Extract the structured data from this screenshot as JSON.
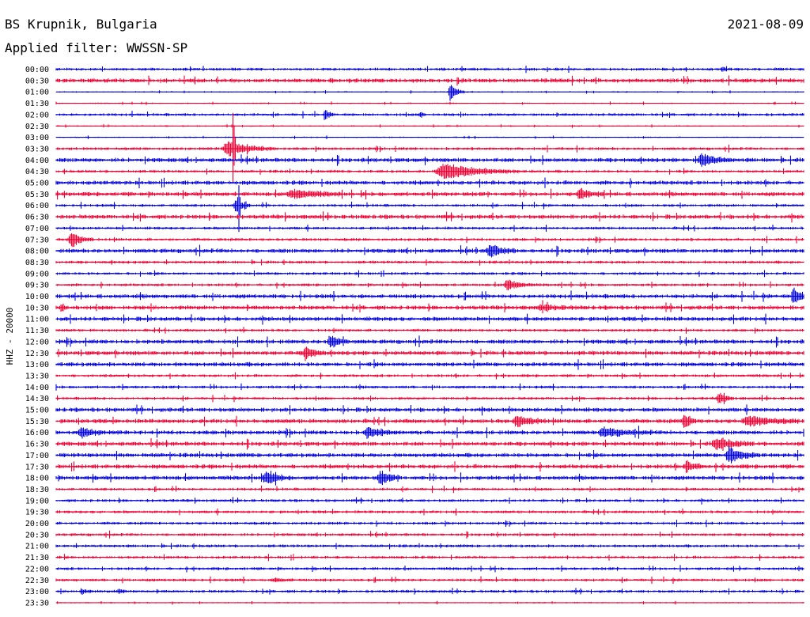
{
  "header": {
    "station": "BS Krupnik, Bulgaria",
    "date": "2021-08-09",
    "filter": "Applied filter: WWSSN-SP"
  },
  "colors": {
    "blue": "#0000dd",
    "red": "#ee0033"
  },
  "chart_data": {
    "type": "line",
    "title": "BS Krupnik, Bulgaria",
    "ylabel": "HHZ - 20000",
    "xlabel": "",
    "grid": false,
    "rows": [
      "00:00",
      "00:30",
      "01:00",
      "01:30",
      "02:00",
      "02:30",
      "03:00",
      "03:30",
      "04:00",
      "04:30",
      "05:00",
      "05:30",
      "06:00",
      "06:30",
      "07:00",
      "07:30",
      "08:00",
      "08:30",
      "09:00",
      "09:30",
      "10:00",
      "10:30",
      "11:00",
      "11:30",
      "12:00",
      "12:30",
      "13:00",
      "13:30",
      "14:00",
      "14:30",
      "15:00",
      "15:30",
      "16:00",
      "16:30",
      "17:00",
      "17:30",
      "18:00",
      "18:30",
      "19:00",
      "19:30",
      "20:00",
      "20:30",
      "21:00",
      "21:30",
      "22:00",
      "22:30",
      "23:00",
      "23:30"
    ],
    "row_colors": [
      "blue",
      "red"
    ],
    "minutes_per_row": 30,
    "noise_level": [
      2,
      3,
      1,
      1,
      2,
      1,
      1,
      2,
      3,
      2,
      3,
      3,
      2,
      3,
      2,
      2,
      3,
      2,
      2,
      2,
      3,
      3,
      3,
      2,
      3,
      3,
      3,
      2,
      2,
      2,
      3,
      3,
      3,
      3,
      3,
      3,
      3,
      2,
      2,
      2,
      2,
      2,
      2,
      2,
      2,
      2,
      2,
      1
    ],
    "events": [
      {
        "row": "00:00",
        "minute": 26.7,
        "amp": 3,
        "dur": 0.3
      },
      {
        "row": "01:00",
        "minute": 15.8,
        "amp": 12,
        "dur": 0.6
      },
      {
        "row": "02:00",
        "minute": 10.8,
        "amp": 6,
        "dur": 0.4
      },
      {
        "row": "02:00",
        "minute": 14.6,
        "amp": 4,
        "dur": 0.3
      },
      {
        "row": "03:30",
        "minute": 6.9,
        "amp": 9,
        "dur": 2.0
      },
      {
        "row": "03:30",
        "minute": 7.1,
        "amp": 90,
        "dur": 0.1
      },
      {
        "row": "04:00",
        "minute": 25.9,
        "amp": 8,
        "dur": 1.2
      },
      {
        "row": "04:30",
        "minute": 15.6,
        "amp": 10,
        "dur": 3.0
      },
      {
        "row": "05:30",
        "minute": 9.5,
        "amp": 5,
        "dur": 2.0
      },
      {
        "row": "05:30",
        "minute": 21.0,
        "amp": 6,
        "dur": 1.0
      },
      {
        "row": "06:00",
        "minute": 7.2,
        "amp": 10,
        "dur": 0.6
      },
      {
        "row": "06:00",
        "minute": 7.3,
        "amp": 60,
        "dur": 0.1
      },
      {
        "row": "07:30",
        "minute": 0.6,
        "amp": 11,
        "dur": 0.9
      },
      {
        "row": "08:00",
        "minute": 17.4,
        "amp": 8,
        "dur": 1.0
      },
      {
        "row": "09:30",
        "minute": 18.1,
        "amp": 7,
        "dur": 1.0
      },
      {
        "row": "10:00",
        "minute": 29.6,
        "amp": 10,
        "dur": 0.8
      },
      {
        "row": "10:30",
        "minute": 0.2,
        "amp": 6,
        "dur": 0.3
      },
      {
        "row": "10:30",
        "minute": 19.5,
        "amp": 3,
        "dur": 1.5
      },
      {
        "row": "12:00",
        "minute": 11.0,
        "amp": 9,
        "dur": 0.8
      },
      {
        "row": "12:30",
        "minute": 10.0,
        "amp": 8,
        "dur": 0.8
      },
      {
        "row": "14:30",
        "minute": 26.6,
        "amp": 8,
        "dur": 0.6
      },
      {
        "row": "15:30",
        "minute": 18.5,
        "amp": 8,
        "dur": 1.2
      },
      {
        "row": "15:30",
        "minute": 25.2,
        "amp": 10,
        "dur": 0.6
      },
      {
        "row": "15:30",
        "minute": 27.8,
        "amp": 6,
        "dur": 2.0
      },
      {
        "row": "16:00",
        "minute": 1.0,
        "amp": 6,
        "dur": 1.0
      },
      {
        "row": "16:00",
        "minute": 12.5,
        "amp": 6,
        "dur": 1.2
      },
      {
        "row": "16:00",
        "minute": 22.0,
        "amp": 5,
        "dur": 2.0
      },
      {
        "row": "16:30",
        "minute": 26.5,
        "amp": 7,
        "dur": 1.5
      },
      {
        "row": "17:00",
        "minute": 27.0,
        "amp": 10,
        "dur": 1.2
      },
      {
        "row": "17:30",
        "minute": 25.3,
        "amp": 7,
        "dur": 0.8
      },
      {
        "row": "18:00",
        "minute": 8.4,
        "amp": 8,
        "dur": 1.0
      },
      {
        "row": "18:00",
        "minute": 13.0,
        "amp": 8,
        "dur": 0.9
      },
      {
        "row": "22:30",
        "minute": 8.8,
        "amp": 2,
        "dur": 1.0
      },
      {
        "row": "23:00",
        "minute": 1.0,
        "amp": 4,
        "dur": 0.4
      },
      {
        "row": "23:00",
        "minute": 2.5,
        "amp": 3,
        "dur": 0.5
      }
    ]
  }
}
